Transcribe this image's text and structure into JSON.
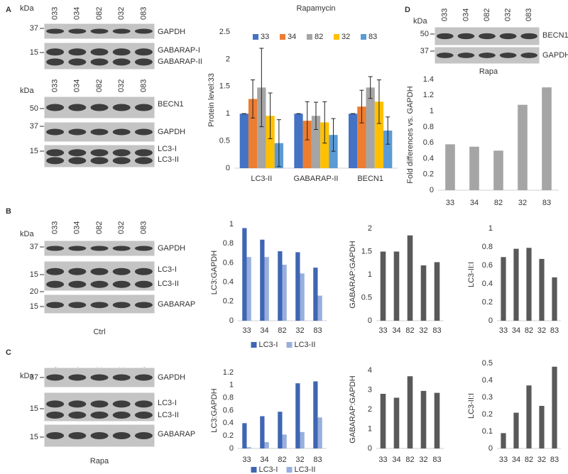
{
  "letters": [
    "A",
    "B",
    "C",
    "D"
  ],
  "blots": [
    {
      "kda": "kDa",
      "lanes": [
        "033",
        "034",
        "082",
        "032",
        "083"
      ],
      "lane_colors": [
        "#2e7d32",
        "#2e7d32",
        "#2e7d32",
        "#c62828",
        "#c62828"
      ],
      "markers": [
        "37",
        "15"
      ],
      "bands": [
        "GAPDH",
        "GABARAP-I",
        "GABARAP-II"
      ]
    },
    {
      "kda": "kDa",
      "lanes": [
        "033",
        "034",
        "082",
        "032",
        "083"
      ],
      "lane_colors": [
        "#2e7d32",
        "#2e7d32",
        "#2e7d32",
        "#c62828",
        "#c62828"
      ],
      "markers": [
        "50",
        "37",
        "15"
      ],
      "bands": [
        "BECN1",
        "GAPDH",
        "LC3-I",
        "LC3-II"
      ]
    },
    {
      "kda": "kDa",
      "lanes": [
        "033",
        "034",
        "082",
        "032",
        "083"
      ],
      "lane_colors": [
        "#2e7d32",
        "#2e7d32",
        "#2e7d32",
        "#c62828",
        "#c62828"
      ],
      "markers": [
        "50",
        "37"
      ],
      "bands": [
        "BECN1",
        "GAPDH"
      ],
      "caption": "Rapa"
    },
    {
      "kda": "kDa",
      "lanes": [
        "033",
        "034",
        "082",
        "032",
        "083"
      ],
      "lane_colors": [
        "#2e7d32",
        "#2e7d32",
        "#2e7d32",
        "#c62828",
        "#c62828"
      ],
      "markers": [
        "37",
        "15",
        "20",
        "15"
      ],
      "bands": [
        "GAPDH",
        "LC3-I",
        "LC3-II",
        "GABARAP"
      ],
      "caption": "Ctrl"
    },
    {
      "kda": "kDa",
      "lanes": [
        "033",
        "034",
        "082",
        "032",
        "083"
      ],
      "lane_colors": [
        "#2e7d32",
        "#2e7d32",
        "#2e7d32",
        "#c62828",
        "#c62828"
      ],
      "markers": [
        "37",
        "15",
        "15"
      ],
      "bands": [
        "GAPDH",
        "LC3-I",
        "LC3-II",
        "GABARAP"
      ],
      "caption": "Rapa"
    }
  ],
  "chart_data": [
    {
      "type": "bar",
      "title": "Rapamycin",
      "y_label": "Protein level:33",
      "categories": [
        "LC3-II",
        "GABARAP-II",
        "BECN1"
      ],
      "series": [
        {
          "name": "33",
          "color": "#4472c4",
          "values": [
            1,
            1,
            1
          ],
          "errors": [
            0,
            0,
            0
          ]
        },
        {
          "name": "34",
          "color": "#ed7d31",
          "values": [
            1.27,
            0.87,
            1.13
          ],
          "errors": [
            0.35,
            0.35,
            0.3
          ]
        },
        {
          "name": "82",
          "color": "#a5a5a5",
          "values": [
            1.48,
            0.96,
            1.48
          ],
          "errors": [
            0.72,
            0.25,
            0.2
          ]
        },
        {
          "name": "32",
          "color": "#ffc000",
          "values": [
            0.96,
            0.84,
            1.22
          ],
          "errors": [
            0.42,
            0.38,
            0.4
          ]
        },
        {
          "name": "83",
          "color": "#5b9bd5",
          "values": [
            0.46,
            0.61,
            0.69
          ],
          "errors": [
            0.43,
            0.3,
            0.25
          ]
        }
      ],
      "ylim": [
        0,
        2.5
      ],
      "yticks": [
        0,
        0.5,
        1,
        1.5,
        2,
        2.5
      ],
      "legend": "top"
    },
    {
      "type": "bar",
      "y_label": "Fold differences vs. GAPDH",
      "categories": [
        "33",
        "34",
        "82",
        "32",
        "83"
      ],
      "values": [
        0.58,
        0.55,
        0.5,
        1.08,
        1.3
      ],
      "color": "#a5a5a5",
      "ylim": [
        0,
        1.4
      ],
      "yticks": [
        0,
        0.2,
        0.4,
        0.6,
        0.8,
        1,
        1.2,
        1.4
      ]
    },
    {
      "type": "bar",
      "y_label": "LC3:GAPDH",
      "categories": [
        "33",
        "34",
        "82",
        "32",
        "83"
      ],
      "series": [
        {
          "name": "LC3-I",
          "color": "#3f66b3",
          "values": [
            0.96,
            0.84,
            0.72,
            0.71,
            0.55
          ]
        },
        {
          "name": "LC3-II",
          "color": "#98aedc",
          "values": [
            0.66,
            0.66,
            0.58,
            0.49,
            0.26
          ]
        }
      ],
      "ylim": [
        0,
        1
      ],
      "yticks": [
        0,
        0.2,
        0.4,
        0.6,
        0.8,
        1
      ],
      "legend": "bottom"
    },
    {
      "type": "bar",
      "y_label": "GABARAP:GAPDH",
      "categories": [
        "33",
        "34",
        "82",
        "32",
        "83"
      ],
      "values": [
        1.5,
        1.5,
        1.85,
        1.2,
        1.27
      ],
      "color": "#595959",
      "ylim": [
        0,
        2
      ],
      "yticks": [
        0,
        0.5,
        1,
        1.5,
        2
      ]
    },
    {
      "type": "bar",
      "y_label": "LC3-II:I",
      "categories": [
        "33",
        "34",
        "82",
        "32",
        "83"
      ],
      "values": [
        0.69,
        0.78,
        0.79,
        0.67,
        0.47
      ],
      "color": "#595959",
      "ylim": [
        0,
        1
      ],
      "yticks": [
        0,
        0.2,
        0.4,
        0.6,
        0.8,
        1
      ]
    },
    {
      "type": "bar",
      "y_label": "LC3:GAPDH",
      "categories": [
        "33",
        "34",
        "82",
        "32",
        "83"
      ],
      "series": [
        {
          "name": "LC3-I",
          "color": "#3f66b3",
          "values": [
            0.4,
            0.51,
            0.58,
            1.03,
            1.06
          ]
        },
        {
          "name": "LC3-II",
          "color": "#98aedc",
          "values": [
            0.02,
            0.1,
            0.22,
            0.26,
            0.49
          ]
        }
      ],
      "ylim": [
        0,
        1.2
      ],
      "yticks": [
        0,
        0.2,
        0.4,
        0.6,
        0.8,
        1,
        1.2
      ],
      "legend": "bottom"
    },
    {
      "type": "bar",
      "y_label": "GABARAP:GAPDH",
      "categories": [
        "33",
        "34",
        "82",
        "32",
        "83"
      ],
      "values": [
        2.8,
        2.6,
        3.7,
        2.95,
        2.85
      ],
      "color": "#595959",
      "ylim": [
        0,
        4
      ],
      "yticks": [
        0,
        1,
        2,
        3,
        4
      ]
    },
    {
      "type": "bar",
      "y_label": "LC3-II:I",
      "categories": [
        "33",
        "34",
        "82",
        "32",
        "83"
      ],
      "values": [
        0.09,
        0.21,
        0.37,
        0.25,
        0.48
      ],
      "color": "#595959",
      "ylim": [
        0,
        0.5
      ],
      "yticks": [
        0,
        0.1,
        0.2,
        0.3,
        0.4,
        0.5
      ]
    }
  ]
}
